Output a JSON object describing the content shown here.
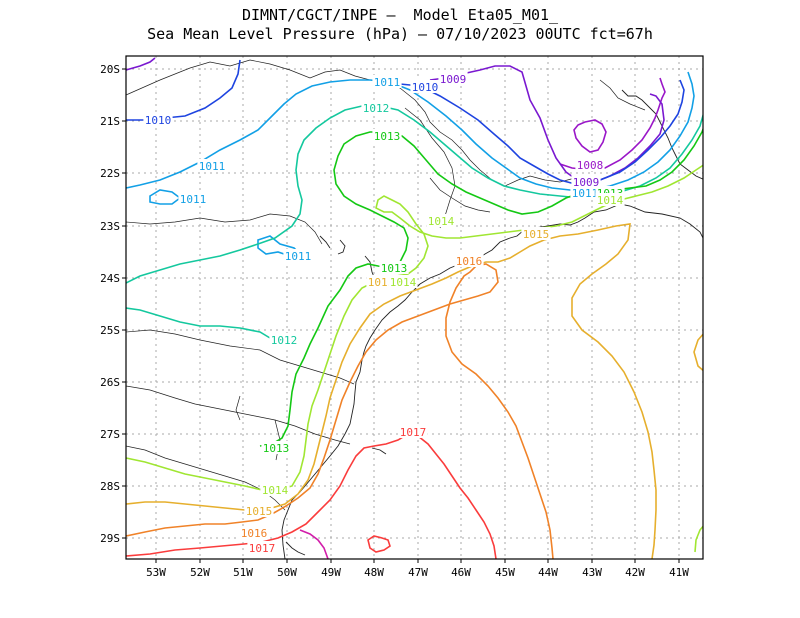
{
  "title": {
    "line1": "DIMNT/CGCT/INPE –  Model Eta05_M01_",
    "line2": "Sea Mean Level Pressure (hPa) – 07/10/2023 00UTC fct=67h"
  },
  "axes": {
    "lat_ticks": [
      "20S",
      "21S",
      "22S",
      "23S",
      "24S",
      "25S",
      "26S",
      "27S",
      "28S",
      "29S"
    ],
    "lon_ticks": [
      "53W",
      "52W",
      "51W",
      "50W",
      "49W",
      "48W",
      "47W",
      "46W",
      "45W",
      "44W",
      "43W",
      "42W",
      "41W"
    ]
  },
  "isobars": [
    {
      "level": "1008",
      "color": "#9a17c8"
    },
    {
      "level": "1009",
      "color": "#7a18d0"
    },
    {
      "level": "1010",
      "color": "#1e44e0"
    },
    {
      "level": "1011",
      "color": "#12a0e6"
    },
    {
      "level": "1012",
      "color": "#14c89e"
    },
    {
      "level": "1013",
      "color": "#14c814"
    },
    {
      "level": "1014",
      "color": "#a0e632"
    },
    {
      "level": "1015",
      "color": "#e6af2d"
    },
    {
      "level": "1016",
      "color": "#f08228"
    },
    {
      "level": "1017",
      "color": "#fa3c3c"
    },
    {
      "level": "1018",
      "color": "#d21eaa"
    }
  ],
  "labels": [
    {
      "text": "1009",
      "color": "#7a18d0"
    },
    {
      "text": "1010",
      "color": "#1e44e0"
    },
    {
      "text": "1011",
      "color": "#12a0e6"
    },
    {
      "text": "1010",
      "color": "#1e44e0"
    },
    {
      "text": "1012",
      "color": "#14c89e"
    },
    {
      "text": "1013",
      "color": "#14c814"
    },
    {
      "text": "1011",
      "color": "#12a0e6"
    },
    {
      "text": "1011",
      "color": "#12a0e6"
    },
    {
      "text": "1014",
      "color": "#a0e632"
    },
    {
      "text": "1011",
      "color": "#12a0e6"
    },
    {
      "text": "1008",
      "color": "#9a17c8"
    },
    {
      "text": "1009",
      "color": "#7a18d0"
    },
    {
      "text": "1011",
      "color": "#12a0e6"
    },
    {
      "text": "1013",
      "color": "#14c814"
    },
    {
      "text": "1014",
      "color": "#a0e632"
    },
    {
      "text": "1015",
      "color": "#e6af2d"
    },
    {
      "text": "1016",
      "color": "#f08228"
    },
    {
      "text": "1013",
      "color": "#14c814"
    },
    {
      "text": "1015",
      "color": "#e6af2d"
    },
    {
      "text": "1014",
      "color": "#a0e632"
    },
    {
      "text": "1012",
      "color": "#14c89e"
    },
    {
      "text": "1017",
      "color": "#fa3c3c"
    },
    {
      "text": "1013",
      "color": "#14c814"
    },
    {
      "text": "1014",
      "color": "#a0e632"
    },
    {
      "text": "1015",
      "color": "#e6af2d"
    },
    {
      "text": "1016",
      "color": "#f08228"
    },
    {
      "text": "1017",
      "color": "#fa3c3c"
    }
  ]
}
